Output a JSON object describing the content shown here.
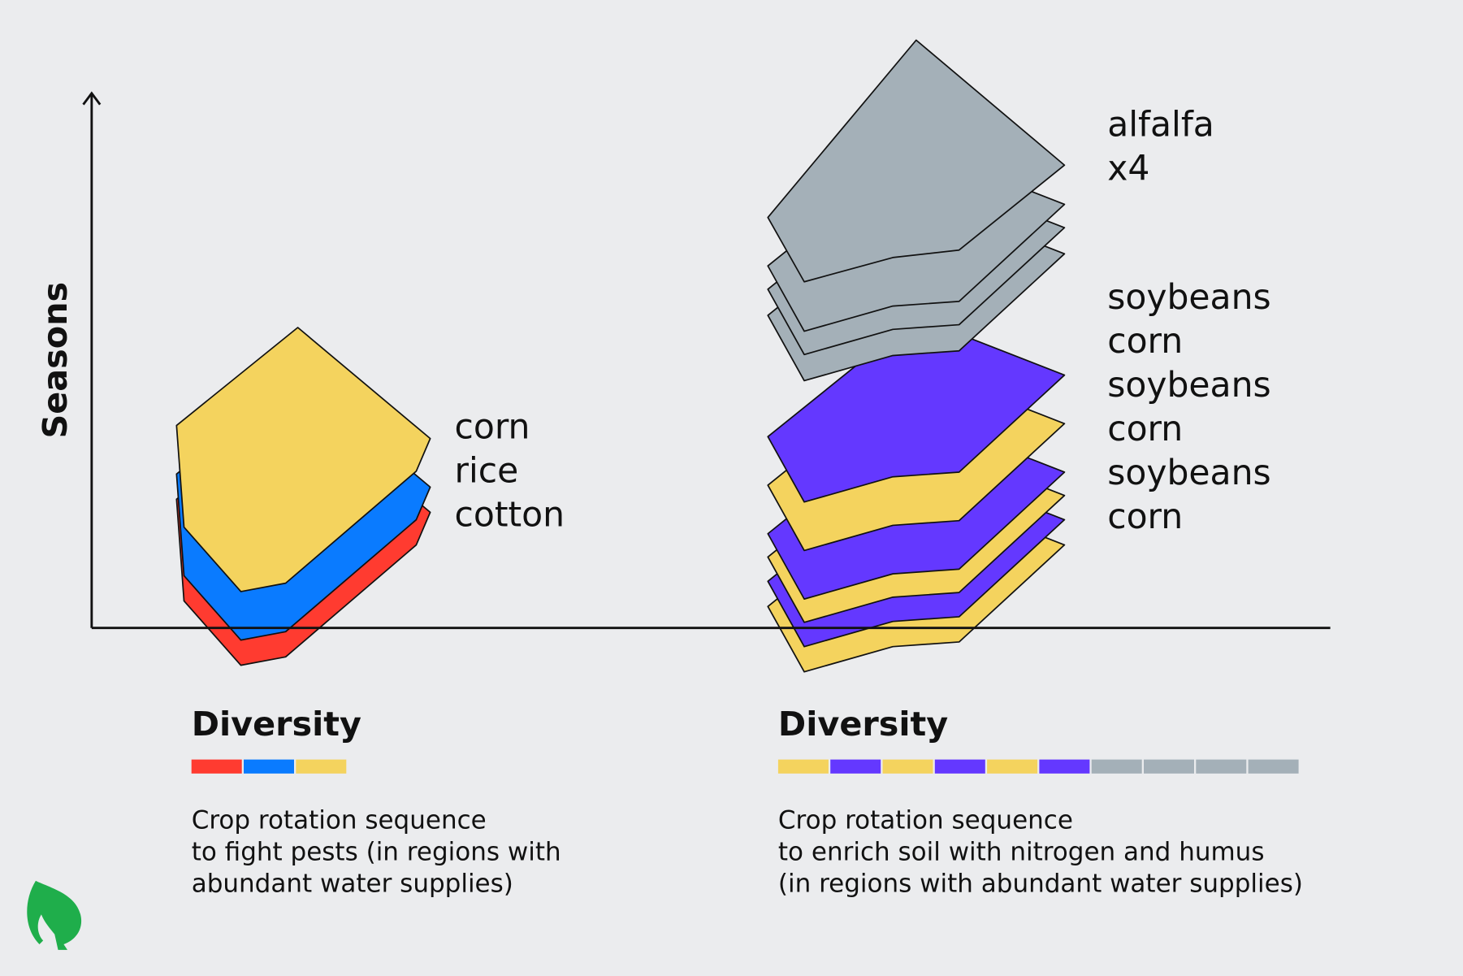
{
  "axis_label": "Seasons",
  "groups": [
    {
      "crops": [
        "corn",
        "rice",
        "cotton"
      ],
      "diversity_title": "Diversity",
      "description": [
        "Crop rotation sequence",
        "to fight pests (in regions with",
        "abundant water supplies)"
      ]
    },
    {
      "crops": [
        "alfalfa",
        "x4",
        "soybeans",
        "corn",
        "soybeans",
        "corn",
        "soybeans",
        "corn"
      ],
      "diversity_title": "Diversity",
      "description": [
        "Crop rotation sequence",
        "to enrich soil with nitrogen and humus",
        "(in regions with abundant water supplies)"
      ]
    }
  ]
}
